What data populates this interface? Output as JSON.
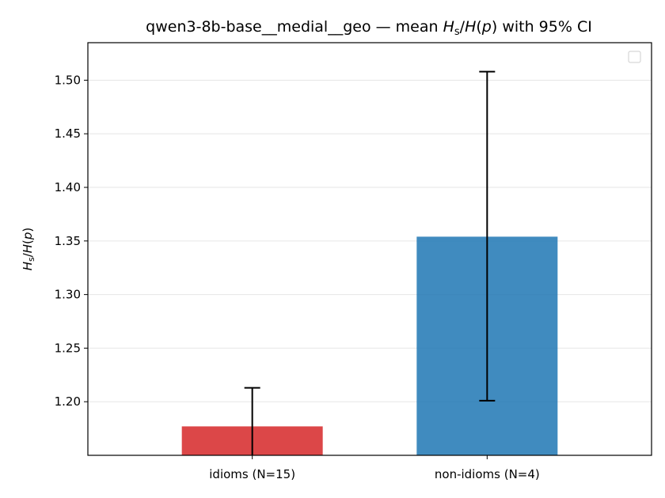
{
  "chart_data": {
    "type": "bar",
    "title": {
      "prefix": "qwen3-8b-base__medial__geo — mean ",
      "suffix": " with 95% CI"
    },
    "ylabel": "Hs/H(p)",
    "categories": [
      "idioms (N=15)",
      "non-idioms (N=4)"
    ],
    "values": [
      1.177,
      1.354
    ],
    "ci_low": [
      1.149,
      1.201
    ],
    "ci_high": [
      1.213,
      1.508
    ],
    "colors": [
      "#d62728",
      "#1f77b4"
    ],
    "ylim": [
      1.15,
      1.535
    ],
    "yticks": [
      "1.20",
      "1.25",
      "1.30",
      "1.35",
      "1.40",
      "1.45",
      "1.50"
    ],
    "grid": "y",
    "legend": "top-right (empty)"
  }
}
